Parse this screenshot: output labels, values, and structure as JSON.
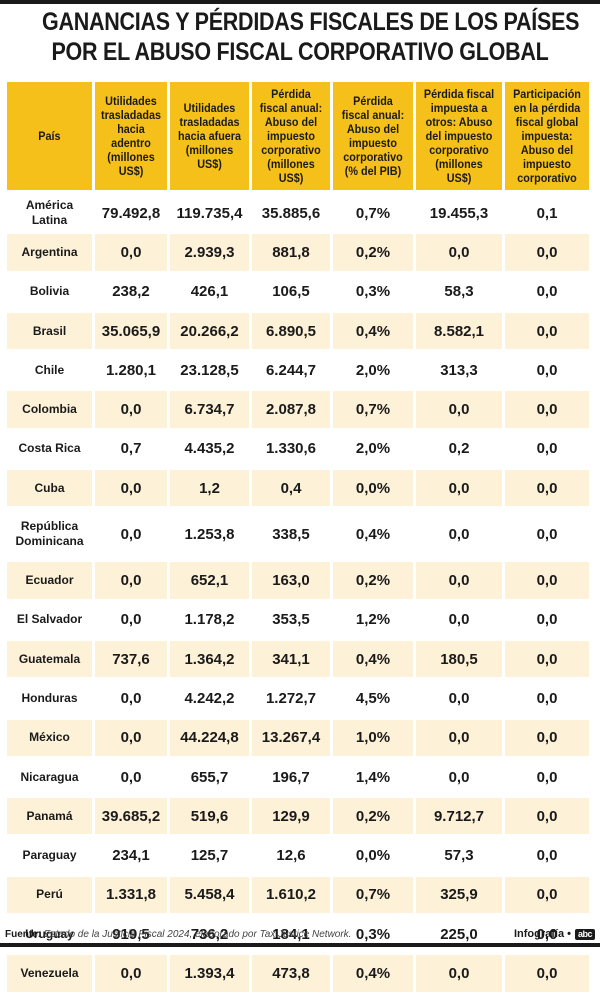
{
  "title_line1": "GANANCIAS Y PÉRDIDAS FISCALES DE LOS PAÍSES",
  "title_line2": "POR EL ABUSO FISCAL CORPORATIVO GLOBAL",
  "colors": {
    "header_bg": "#f5c01a",
    "alt_row_bg": "#fdf1d8",
    "rule": "#1a1a1a"
  },
  "chart_data": {
    "type": "table",
    "title": "Ganancias y pérdidas fiscales de los países por el abuso fiscal corporativo global",
    "columns": [
      "País",
      "Utilidades trasladadas hacia adentro (millones US$)",
      "Utilidades trasladadas hacia afuera (millones US$)",
      "Pérdida fiscal anual: Abuso del impuesto corporativo (millones US$)",
      "Pérdida fiscal anual: Abuso del impuesto corporativo (% del PIB)",
      "Pérdida fiscal impuesta a otros: Abuso del impuesto corporativo (millones US$)",
      "Participación en la pérdida fiscal global impuesta: Abuso del impuesto corporativo"
    ],
    "rows": [
      [
        "América Latina",
        "79.492,8",
        "119.735,4",
        "35.885,6",
        "0,7%",
        "19.455,3",
        "0,1"
      ],
      [
        "Argentina",
        "0,0",
        "2.939,3",
        "881,8",
        "0,2%",
        "0,0",
        "0,0"
      ],
      [
        "Bolivia",
        "238,2",
        "426,1",
        "106,5",
        "0,3%",
        "58,3",
        "0,0"
      ],
      [
        "Brasil",
        "35.065,9",
        "20.266,2",
        "6.890,5",
        "0,4%",
        "8.582,1",
        "0,0"
      ],
      [
        "Chile",
        "1.280,1",
        "23.128,5",
        "6.244,7",
        "2,0%",
        "313,3",
        "0,0"
      ],
      [
        "Colombia",
        "0,0",
        "6.734,7",
        "2.087,8",
        "0,7%",
        "0,0",
        "0,0"
      ],
      [
        "Costa Rica",
        "0,7",
        "4.435,2",
        "1.330,6",
        "2,0%",
        "0,2",
        "0,0"
      ],
      [
        "Cuba",
        "0,0",
        "1,2",
        "0,4",
        "0,0%",
        "0,0",
        "0,0"
      ],
      [
        "República Dominicana",
        "0,0",
        "1.253,8",
        "338,5",
        "0,4%",
        "0,0",
        "0,0"
      ],
      [
        "Ecuador",
        "0,0",
        "652,1",
        "163,0",
        "0,2%",
        "0,0",
        "0,0"
      ],
      [
        "El Salvador",
        "0,0",
        "1.178,2",
        "353,5",
        "1,2%",
        "0,0",
        "0,0"
      ],
      [
        "Guatemala",
        "737,6",
        "1.364,2",
        "341,1",
        "0,4%",
        "180,5",
        "0,0"
      ],
      [
        "Honduras",
        "0,0",
        "4.242,2",
        "1.272,7",
        "4,5%",
        "0,0",
        "0,0"
      ],
      [
        "México",
        "0,0",
        "44.224,8",
        "13.267,4",
        "1,0%",
        "0,0",
        "0,0"
      ],
      [
        "Nicaragua",
        "0,0",
        "655,7",
        "196,7",
        "1,4%",
        "0,0",
        "0,0"
      ],
      [
        "Panamá",
        "39.685,2",
        "519,6",
        "129,9",
        "0,2%",
        "9.712,7",
        "0,0"
      ],
      [
        "Paraguay",
        "234,1",
        "125,7",
        "12,6",
        "0,0%",
        "57,3",
        "0,0"
      ],
      [
        "Perú",
        "1.331,8",
        "5.458,4",
        "1.610,2",
        "0,7%",
        "325,9",
        "0,0"
      ],
      [
        "Uruguay",
        "919,5",
        "736,2",
        "184,1",
        "0,3%",
        "225,0",
        "0,0"
      ],
      [
        "Venezuela",
        "0,0",
        "1.393,4",
        "473,8",
        "0,4%",
        "0,0",
        "0,0"
      ]
    ]
  },
  "footer": {
    "source_label": "Fuente:",
    "source_text": "Estado de la Justicia Fiscal 2024, elaborado por Tax Justice Network.",
    "credit": "Infografía •",
    "logo": "abc"
  }
}
